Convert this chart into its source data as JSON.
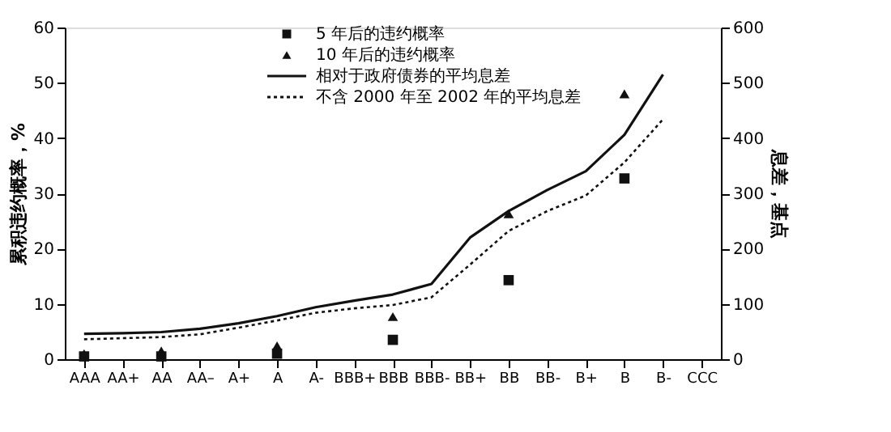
{
  "chart_data": {
    "type": "line",
    "categories": [
      "AAA",
      "AA+",
      "AA",
      "AA–",
      "A+",
      "A",
      "A-",
      "BBB+",
      "BBB",
      "BBB-",
      "BB+",
      "BB",
      "BB-",
      "B+",
      "B",
      "B-",
      "CCC"
    ],
    "ylabel": "累积违约概率，%",
    "y2label": "息差，基点",
    "ylim": [
      0,
      60
    ],
    "yticks": [
      0,
      10,
      20,
      30,
      40,
      50,
      60
    ],
    "y2lim": [
      0,
      600
    ],
    "y2ticks": [
      0,
      100,
      200,
      300,
      400,
      500,
      600
    ],
    "legend": "top",
    "grid": false,
    "series": [
      {
        "name": "5 年后的违约概率",
        "type": "scatter",
        "marker": "square",
        "color": "#111111",
        "values": [
          0.5,
          null,
          0.5,
          null,
          null,
          1,
          null,
          null,
          3.5,
          null,
          null,
          14.3,
          null,
          null,
          32.7,
          null,
          null
        ]
      },
      {
        "name": "10 年后的违约概率",
        "type": "scatter",
        "marker": "triangle",
        "color": "#111111",
        "values": [
          1,
          null,
          1.5,
          null,
          null,
          2.4,
          null,
          null,
          7.7,
          null,
          null,
          26.3,
          null,
          null,
          48,
          null,
          null
        ]
      },
      {
        "name": "相对于政府债券的平均息差",
        "axis": "y2",
        "line_style": "solid",
        "color": "#111111",
        "values": [
          46,
          47,
          49,
          55,
          65,
          78,
          94,
          106,
          117,
          136,
          220,
          268,
          306,
          340,
          406,
          515,
          null
        ]
      },
      {
        "name": "不含 2000 年至 2002 年的平均息差",
        "axis": "y2",
        "line_style": "dotted",
        "color": "#111111",
        "values": [
          36,
          38,
          40,
          45,
          57,
          70,
          84,
          92,
          98,
          112,
          171,
          232,
          268,
          296,
          356,
          434,
          null
        ]
      }
    ]
  }
}
